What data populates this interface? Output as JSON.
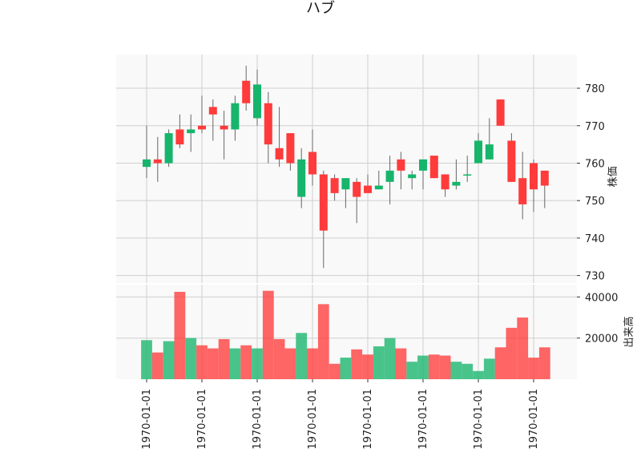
{
  "chart_data": {
    "type": "candlestick",
    "title": "ハブ",
    "colors": {
      "up": "#16b56b",
      "down": "#ff3b3b",
      "wick": "#666666",
      "panel_bg": "#f9f9f9",
      "grid": "#cfcfcf"
    },
    "grid": true,
    "price_panel": {
      "ylabel": "株価",
      "ylim": [
        728,
        789
      ],
      "yticks": [
        730,
        740,
        750,
        760,
        770,
        780
      ]
    },
    "volume_panel": {
      "ylabel": "出来高",
      "ylim": [
        0,
        46000
      ],
      "yticks": [
        20000,
        40000
      ]
    },
    "x_tick_labels": [
      "1970-01-01",
      "1970-01-01",
      "1970-01-01",
      "1970-01-01",
      "1970-01-01",
      "1970-01-01",
      "1970-01-01",
      "1970-01-01"
    ],
    "x_tick_indices": [
      0,
      5,
      10,
      15,
      20,
      25,
      30,
      35
    ],
    "candles": [
      {
        "open": 759,
        "high": 770,
        "low": 756,
        "close": 761,
        "volume": 19000
      },
      {
        "open": 761,
        "high": 767,
        "low": 755,
        "close": 760,
        "volume": 13000
      },
      {
        "open": 760,
        "high": 769,
        "low": 759,
        "close": 768,
        "volume": 18500
      },
      {
        "open": 769,
        "high": 773,
        "low": 764,
        "close": 765,
        "volume": 42500
      },
      {
        "open": 768,
        "high": 773,
        "low": 763,
        "close": 769,
        "volume": 20000
      },
      {
        "open": 770,
        "high": 778,
        "low": 768,
        "close": 769,
        "volume": 16500
      },
      {
        "open": 775,
        "high": 777,
        "low": 766,
        "close": 773,
        "volume": 15000
      },
      {
        "open": 770,
        "high": 774,
        "low": 761,
        "close": 769,
        "volume": 19500
      },
      {
        "open": 769,
        "high": 778,
        "low": 766,
        "close": 776,
        "volume": 15000
      },
      {
        "open": 782,
        "high": 786,
        "low": 774,
        "close": 776,
        "volume": 16500
      },
      {
        "open": 772,
        "high": 785,
        "low": 770,
        "close": 781,
        "volume": 15000
      },
      {
        "open": 776,
        "high": 779,
        "low": 760,
        "close": 765,
        "volume": 43000
      },
      {
        "open": 764,
        "high": 775,
        "low": 759,
        "close": 761,
        "volume": 19500
      },
      {
        "open": 768,
        "high": 768,
        "low": 758,
        "close": 760,
        "volume": 15000
      },
      {
        "open": 751,
        "high": 764,
        "low": 748,
        "close": 761,
        "volume": 22500
      },
      {
        "open": 763,
        "high": 769,
        "low": 754,
        "close": 757,
        "volume": 15000
      },
      {
        "open": 757,
        "high": 758,
        "low": 732,
        "close": 742,
        "volume": 36500
      },
      {
        "open": 756,
        "high": 757,
        "low": 750,
        "close": 752,
        "volume": 7500
      },
      {
        "open": 753,
        "high": 756,
        "low": 748,
        "close": 756,
        "volume": 10500
      },
      {
        "open": 755,
        "high": 756,
        "low": 744,
        "close": 751,
        "volume": 14500
      },
      {
        "open": 754,
        "high": 757,
        "low": 752,
        "close": 752,
        "volume": 12000
      },
      {
        "open": 753,
        "high": 758,
        "low": 753,
        "close": 754,
        "volume": 16000
      },
      {
        "open": 755,
        "high": 762,
        "low": 749,
        "close": 758,
        "volume": 20000
      },
      {
        "open": 761,
        "high": 763,
        "low": 753,
        "close": 758,
        "volume": 15000
      },
      {
        "open": 756,
        "high": 758,
        "low": 753,
        "close": 757,
        "volume": 8500
      },
      {
        "open": 758,
        "high": 761,
        "low": 753,
        "close": 761,
        "volume": 11500
      },
      {
        "open": 762,
        "high": 762,
        "low": 756,
        "close": 756,
        "volume": 12000
      },
      {
        "open": 757,
        "high": 757,
        "low": 751,
        "close": 753,
        "volume": 11500
      },
      {
        "open": 754,
        "high": 761,
        "low": 753,
        "close": 755,
        "volume": 8500
      },
      {
        "open": 757,
        "high": 762,
        "low": 755,
        "close": 757,
        "volume": 7500
      },
      {
        "open": 760,
        "high": 768,
        "low": 760,
        "close": 766,
        "volume": 4000
      },
      {
        "open": 761,
        "high": 772,
        "low": 761,
        "close": 765,
        "volume": 10000
      },
      {
        "open": 777,
        "high": 777,
        "low": 770,
        "close": 770,
        "volume": 15500
      },
      {
        "open": 766,
        "high": 768,
        "low": 755,
        "close": 755,
        "volume": 25000
      },
      {
        "open": 756,
        "high": 763,
        "low": 745,
        "close": 749,
        "volume": 30000
      },
      {
        "open": 760,
        "high": 761,
        "low": 747,
        "close": 753,
        "volume": 10500
      },
      {
        "open": 758,
        "high": 758,
        "low": 748,
        "close": 754,
        "volume": 15500
      }
    ]
  }
}
